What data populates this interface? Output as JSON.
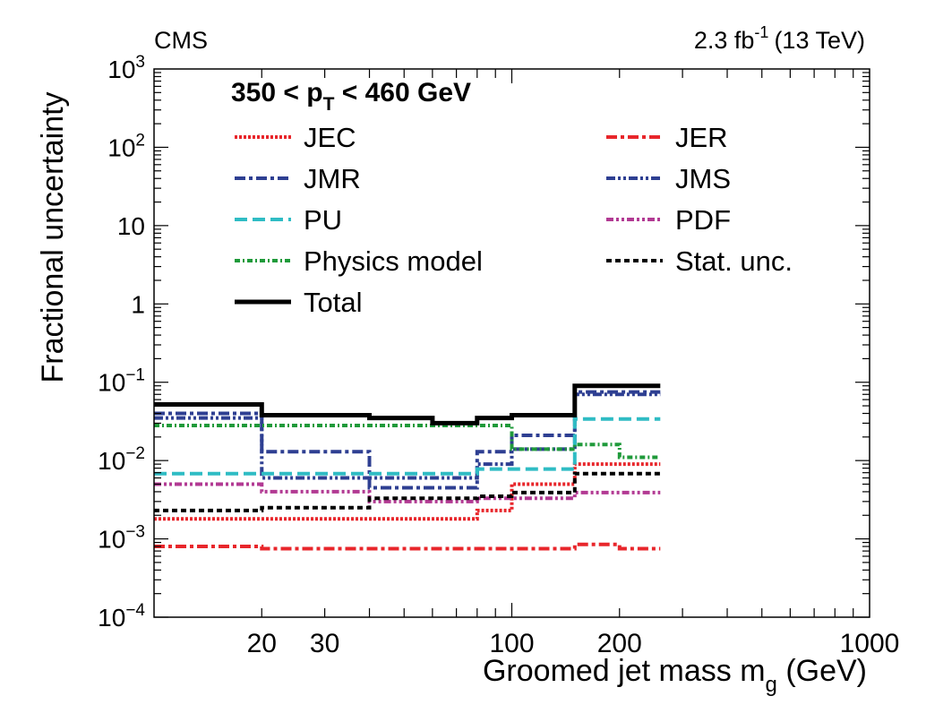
{
  "header": {
    "experiment": "CMS",
    "lumi_value": "2.3 fb",
    "lumi_exp": "-1",
    "energy": "(13 TeV)"
  },
  "chart_data": {
    "type": "line",
    "subtype": "step",
    "title_prefix": "350 < p",
    "title_sub": "T",
    "title_suffix": " < 460 GeV",
    "xlabel_main": "Groomed jet mass m",
    "xlabel_sub": "g",
    "xlabel_unit": " (GeV)",
    "ylabel": "Fractional uncertainty",
    "x_scale": "log",
    "y_scale": "log",
    "xlim": [
      10,
      1000
    ],
    "ylim": [
      0.0001,
      1000
    ],
    "x_tick_labels": [
      {
        "value": 20,
        "label": "20"
      },
      {
        "value": 30,
        "label": "30"
      },
      {
        "value": 100,
        "label": "100"
      },
      {
        "value": 200,
        "label": "200"
      },
      {
        "value": 1000,
        "label": "1000"
      }
    ],
    "y_tick_labels": [
      {
        "value": 0.0001,
        "label": "10",
        "exp": "−4"
      },
      {
        "value": 0.001,
        "label": "10",
        "exp": "−3"
      },
      {
        "value": 0.01,
        "label": "10",
        "exp": "−2"
      },
      {
        "value": 0.1,
        "label": "10",
        "exp": "−1"
      },
      {
        "value": 1,
        "label": "1",
        "exp": ""
      },
      {
        "value": 10,
        "label": "10",
        "exp": ""
      },
      {
        "value": 100,
        "label": "10",
        "exp": "2"
      },
      {
        "value": 1000,
        "label": "10",
        "exp": "3"
      }
    ],
    "bin_edges": [
      10,
      20,
      40,
      60,
      80,
      100,
      150,
      200,
      260
    ],
    "legend_position": "top",
    "series": [
      {
        "name": "JEC",
        "color": "#e8262b",
        "dash": "3,2",
        "width": 4,
        "values": [
          0.0018,
          0.0018,
          0.0018,
          0.0018,
          0.0023,
          0.005,
          0.009,
          0.009
        ]
      },
      {
        "name": "JER",
        "color": "#e8262b",
        "dash": "12,4,4,4",
        "width": 4,
        "values": [
          0.0008,
          0.00075,
          0.00075,
          0.00075,
          0.00075,
          0.00075,
          0.00085,
          0.00075
        ]
      },
      {
        "name": "JMR",
        "color": "#2e3f92",
        "dash": "12,4,4,4",
        "width": 4,
        "values": [
          0.04,
          0.013,
          0.0045,
          0.0045,
          0.013,
          0.021,
          0.075,
          0.075
        ]
      },
      {
        "name": "JMS",
        "color": "#2e3f92",
        "dash": "10,3,3,3,3,3",
        "width": 4,
        "values": [
          0.035,
          0.006,
          0.006,
          0.006,
          0.009,
          0.014,
          0.07,
          0.07
        ]
      },
      {
        "name": "PU",
        "color": "#2fbcc4",
        "dash": "14,6",
        "width": 4,
        "values": [
          0.0068,
          0.0068,
          0.0068,
          0.0068,
          0.0078,
          0.0078,
          0.034,
          0.034
        ]
      },
      {
        "name": "PDF",
        "color": "#b23a93",
        "dash": "8,3,3,3,3,3",
        "width": 4,
        "values": [
          0.005,
          0.004,
          0.003,
          0.003,
          0.0033,
          0.0033,
          0.0039,
          0.0039
        ]
      },
      {
        "name": "Physics model",
        "color": "#1f9a3a",
        "dash": "6,3,2,3",
        "width": 4,
        "values": [
          0.028,
          0.028,
          0.028,
          0.028,
          0.028,
          0.014,
          0.016,
          0.011
        ]
      },
      {
        "name": "Stat. unc.",
        "color": "#000000",
        "dash": "6,4",
        "width": 4,
        "values": [
          0.0023,
          0.0025,
          0.0033,
          0.0033,
          0.0035,
          0.0039,
          0.0068,
          0.0068
        ]
      },
      {
        "name": "Total",
        "color": "#000000",
        "dash": "",
        "width": 5,
        "values": [
          0.052,
          0.038,
          0.035,
          0.03,
          0.035,
          0.038,
          0.09,
          0.09
        ]
      }
    ]
  }
}
